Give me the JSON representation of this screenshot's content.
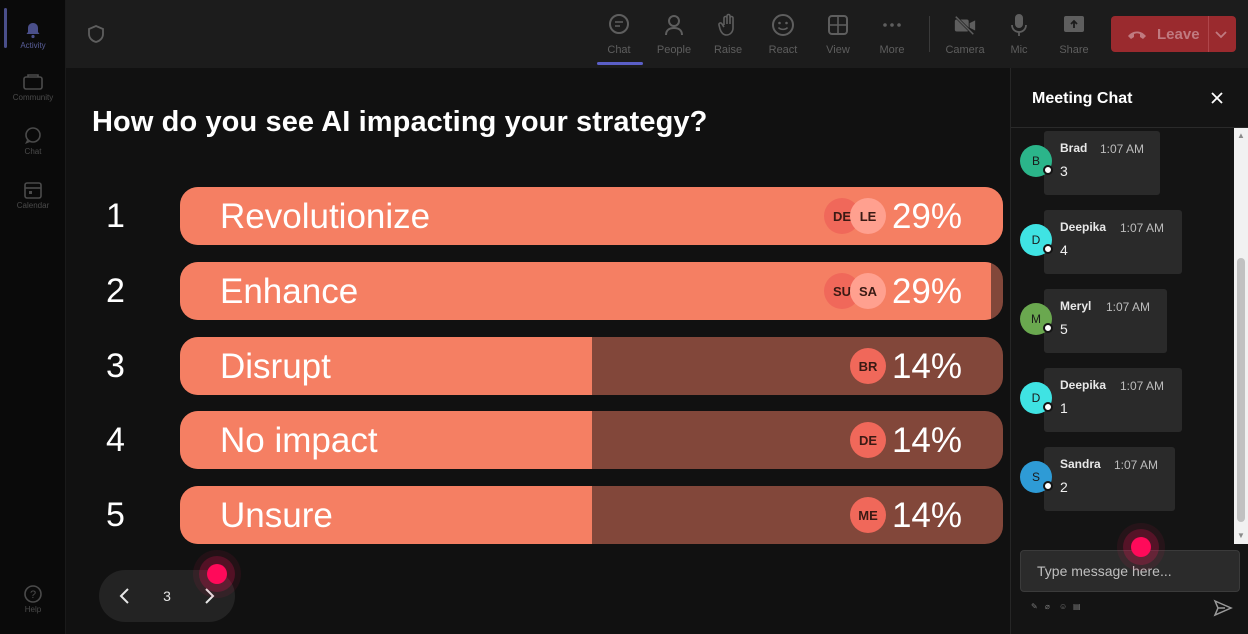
{
  "rail": {
    "items": [
      {
        "label": "Activity",
        "icon": "bell-icon"
      },
      {
        "label": "Community",
        "icon": "community-icon"
      },
      {
        "label": "Chat",
        "icon": "chat-icon"
      },
      {
        "label": "Calendar",
        "icon": "calendar-icon"
      }
    ],
    "help_label": "Help"
  },
  "toolbar": {
    "items": [
      {
        "label": "Chat",
        "icon": "chat-icon"
      },
      {
        "label": "People",
        "icon": "people-icon"
      },
      {
        "label": "Raise",
        "icon": "raise-hand-icon"
      },
      {
        "label": "React",
        "icon": "react-icon"
      },
      {
        "label": "View",
        "icon": "view-icon"
      },
      {
        "label": "More",
        "icon": "more-icon"
      },
      {
        "label": "Camera",
        "icon": "camera-off-icon"
      },
      {
        "label": "Mic",
        "icon": "mic-icon"
      },
      {
        "label": "Share",
        "icon": "share-icon"
      }
    ],
    "leave_label": "Leave"
  },
  "poll": {
    "question": "How do you see AI impacting your strategy?",
    "options": [
      {
        "num": "1",
        "label": "Revolutionize",
        "percent": "29%",
        "fill": 1.0,
        "avatars": [
          "DE",
          "LE"
        ]
      },
      {
        "num": "2",
        "label": "Enhance",
        "percent": "29%",
        "fill": 0.985,
        "avatars": [
          "SU",
          "SA"
        ]
      },
      {
        "num": "3",
        "label": "Disrupt",
        "percent": "14%",
        "fill": 0.5,
        "avatars": [
          "BR"
        ]
      },
      {
        "num": "4",
        "label": "No impact",
        "percent": "14%",
        "fill": 0.5,
        "avatars": [
          "DE"
        ]
      },
      {
        "num": "5",
        "label": "Unsure",
        "percent": "14%",
        "fill": 0.5,
        "avatars": [
          "ME"
        ]
      }
    ],
    "page": "3"
  },
  "chat": {
    "title": "Meeting Chat",
    "messages": [
      {
        "initial": "B",
        "name": "Brad",
        "time": "1:07 AM",
        "text": "3",
        "color": "#2bb58a"
      },
      {
        "initial": "D",
        "name": "Deepika",
        "time": "1:07 AM",
        "text": "4",
        "color": "#3fe3e3"
      },
      {
        "initial": "M",
        "name": "Meryl",
        "time": "1:07 AM",
        "text": "5",
        "color": "#6aa84f"
      },
      {
        "initial": "D",
        "name": "Deepika",
        "time": "1:07 AM",
        "text": "1",
        "color": "#3fe3e3"
      },
      {
        "initial": "S",
        "name": "Sandra",
        "time": "1:07 AM",
        "text": "2",
        "color": "#2e9bd6"
      }
    ],
    "input_placeholder": "Type message here..."
  },
  "colors": {
    "bar_fill": "#f57f63",
    "bar_track": "#82473a",
    "leave": "#9a2a2e",
    "accent": "#5b5fc7"
  }
}
